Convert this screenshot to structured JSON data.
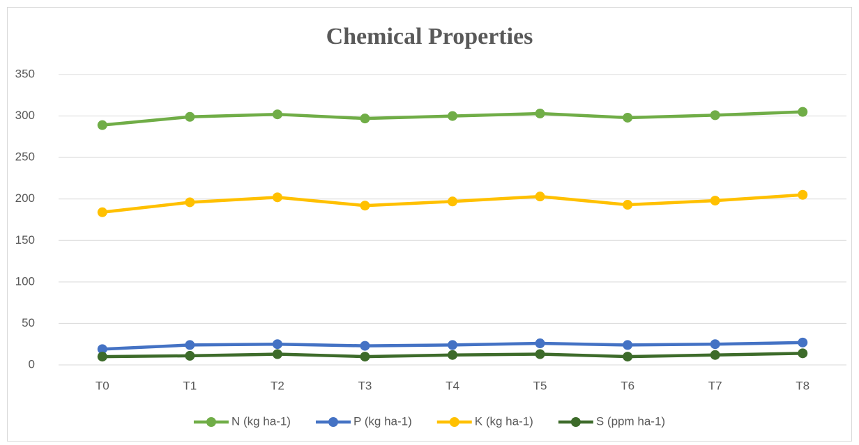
{
  "chart_data": {
    "type": "line",
    "title": "Chemical Properties",
    "categories": [
      "T0",
      "T1",
      "T2",
      "T3",
      "T4",
      "T5",
      "T6",
      "T7",
      "T8"
    ],
    "series": [
      {
        "name": "N (kg ha-1)",
        "color": "#70ad47",
        "values": [
          289,
          299,
          302,
          297,
          300,
          303,
          298,
          301,
          305
        ]
      },
      {
        "name": "P (kg ha-1)",
        "color": "#4472c4",
        "values": [
          19,
          24,
          25,
          23,
          24,
          26,
          24,
          25,
          27
        ]
      },
      {
        "name": "K (kg ha-1)",
        "color": "#ffc000",
        "values": [
          184,
          196,
          202,
          192,
          197,
          203,
          193,
          198,
          205
        ]
      },
      {
        "name": "S (ppm ha-1)",
        "color": "#3d6b2a",
        "values": [
          10,
          11,
          13,
          10,
          12,
          13,
          10,
          12,
          14
        ]
      }
    ],
    "ylim": [
      0,
      350
    ],
    "yticks": [
      0,
      50,
      100,
      150,
      200,
      250,
      300,
      350
    ],
    "grid": true,
    "legend": "bottom"
  }
}
